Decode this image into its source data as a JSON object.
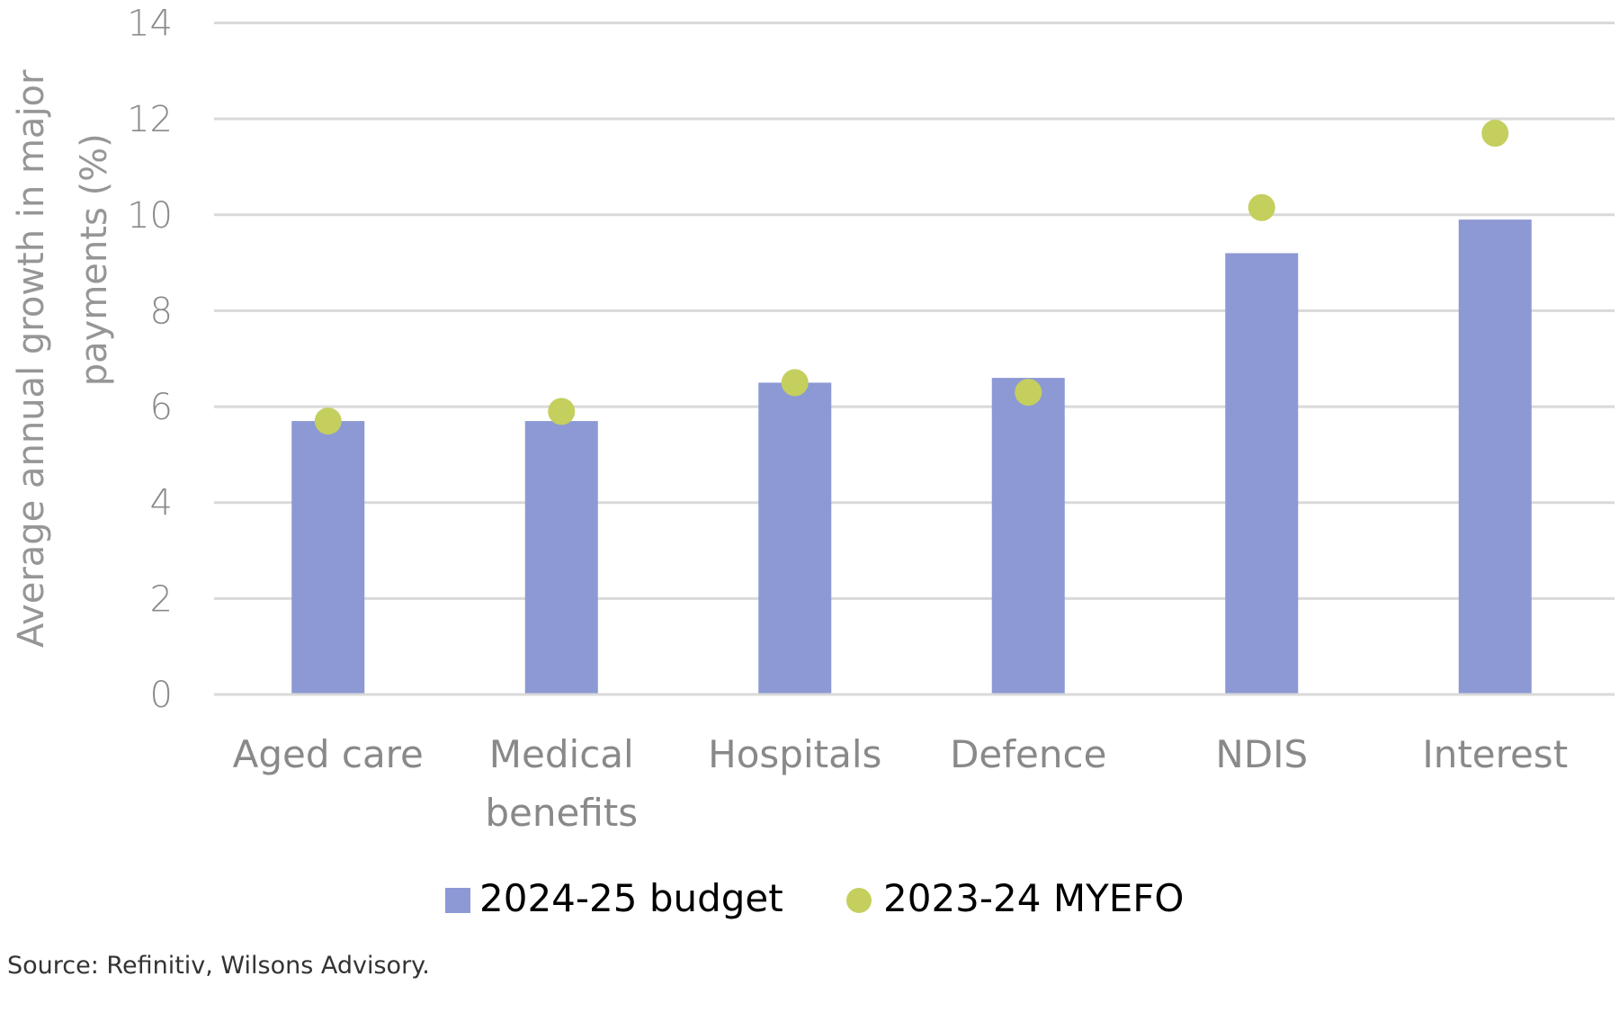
{
  "chart_data": {
    "type": "bar",
    "title": "",
    "xlabel": "",
    "ylabel": "Average annual growth in major payments (%)",
    "ylabel_lines": [
      "Average annual growth in major",
      "payments (%)"
    ],
    "ylim": [
      0,
      14
    ],
    "yticks": [
      0,
      2,
      4,
      6,
      8,
      10,
      12,
      14
    ],
    "grid": true,
    "categories": [
      "Aged care",
      "Medical benefits",
      "Hospitals",
      "Defence",
      "NDIS",
      "Interest"
    ],
    "category_lines": [
      [
        "Aged care"
      ],
      [
        "Medical",
        "benefits"
      ],
      [
        "Hospitals"
      ],
      [
        "Defence"
      ],
      [
        "NDIS"
      ],
      [
        "Interest"
      ]
    ],
    "series": [
      {
        "name": "2024-25 budget",
        "kind": "bar",
        "color": "#8c99d4",
        "values": [
          5.7,
          5.7,
          6.5,
          6.6,
          9.2,
          9.9
        ]
      },
      {
        "name": "2023-24 MYEFO",
        "kind": "marker",
        "color": "#c4cf5e",
        "values": [
          5.7,
          5.9,
          6.5,
          6.3,
          10.15,
          11.7
        ]
      }
    ],
    "legend_position": "bottom-center"
  },
  "source_note": "Source: Refinitiv, Wilsons Advisory."
}
